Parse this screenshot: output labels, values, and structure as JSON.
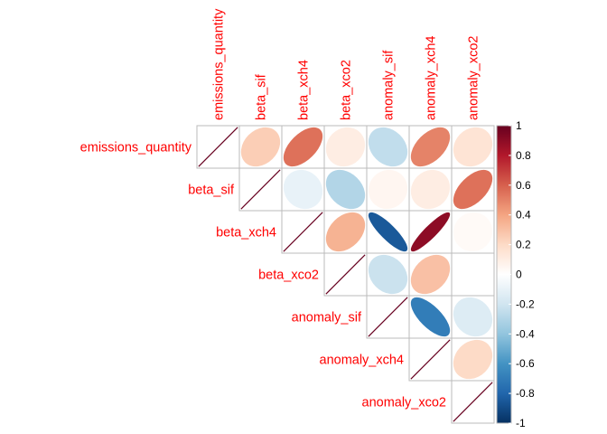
{
  "chart_data": {
    "type": "heatmap",
    "subtype": "correlation-matrix-upper-ellipse",
    "variables": [
      "emissions_quantity",
      "beta_sif",
      "beta_xch4",
      "beta_xco2",
      "anomaly_sif",
      "anomaly_xch4",
      "anomaly_xco2"
    ],
    "matrix": [
      [
        1.0,
        0.25,
        0.55,
        0.1,
        -0.25,
        0.5,
        0.15
      ],
      [
        0.25,
        1.0,
        -0.1,
        -0.3,
        0.05,
        0.1,
        0.55
      ],
      [
        0.55,
        -0.1,
        1.0,
        0.35,
        -0.85,
        0.9,
        0.03
      ],
      [
        0.1,
        -0.3,
        0.35,
        1.0,
        -0.22,
        0.3,
        0.0
      ],
      [
        -0.25,
        0.05,
        -0.85,
        -0.22,
        1.0,
        -0.7,
        -0.15
      ],
      [
        0.5,
        0.1,
        0.9,
        0.3,
        -0.7,
        1.0,
        0.2
      ],
      [
        0.15,
        0.55,
        0.03,
        0.0,
        -0.15,
        0.2,
        1.0
      ]
    ],
    "colorbar": {
      "range": [
        -1,
        1
      ],
      "ticks": [
        "1",
        "0.8",
        "0.6",
        "0.4",
        "0.2",
        "0",
        "-0.2",
        "-0.4",
        "-0.6",
        "-0.8",
        "-1"
      ],
      "tick_values": [
        1,
        0.8,
        0.6,
        0.4,
        0.2,
        0,
        -0.2,
        -0.4,
        -0.6,
        -0.8,
        -1
      ],
      "colors": [
        "#67001F",
        "#B2182B",
        "#D6604D",
        "#F4A582",
        "#FDDBC7",
        "#FFFFFF",
        "#D1E5F0",
        "#92C5DE",
        "#4393C3",
        "#2166AC",
        "#053061"
      ]
    },
    "label_color": "#ff0000",
    "grid_color": "#bbbbbb"
  }
}
